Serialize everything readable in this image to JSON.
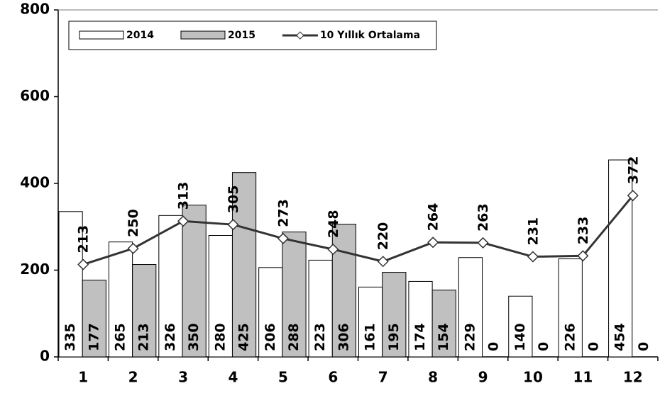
{
  "chart_data": {
    "type": "bar",
    "categories": [
      "1",
      "2",
      "3",
      "4",
      "5",
      "6",
      "7",
      "8",
      "9",
      "10",
      "11",
      "12"
    ],
    "series": [
      {
        "name": "2014",
        "type": "bar",
        "color": "#ffffff",
        "values": [
          335,
          265,
          326,
          280,
          206,
          223,
          161,
          174,
          229,
          140,
          226,
          454
        ]
      },
      {
        "name": "2015",
        "type": "bar",
        "color": "#c0c0c0",
        "values": [
          177,
          213,
          350,
          425,
          288,
          306,
          195,
          154,
          0,
          0,
          0,
          0
        ]
      },
      {
        "name": "10 Yıllık Ortalama",
        "type": "line",
        "color": "#333333",
        "values": [
          213,
          250,
          313,
          305,
          273,
          248,
          220,
          264,
          263,
          231,
          233,
          372
        ]
      }
    ],
    "ylim": [
      0,
      800
    ],
    "yticks": [
      0,
      200,
      400,
      600,
      800
    ],
    "grid": false,
    "legend": "top-left"
  }
}
